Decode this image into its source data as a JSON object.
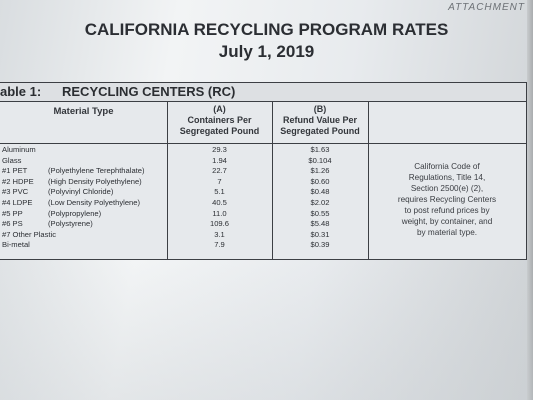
{
  "attachment_label": "ATTACHMENT",
  "title": "CALIFORNIA RECYCLING PROGRAM RATES",
  "date": "July 1, 2019",
  "table": {
    "label": "able 1:",
    "name": "RECYCLING CENTERS (RC)",
    "headers": {
      "material": "Material Type",
      "a_letter": "(A)",
      "a_line1": "Containers Per",
      "a_line2": "Segregated Pound",
      "b_letter": "(B)",
      "b_line1": "Refund Value Per",
      "b_line2": "Segregated Pound"
    },
    "rows": [
      {
        "code": "Aluminum",
        "desc": "",
        "a": "29.3",
        "b": "$1.63"
      },
      {
        "code": "Glass",
        "desc": "",
        "a": "1.94",
        "b": "$0.104"
      },
      {
        "code": "#1 PET",
        "desc": "(Polyethylene Terephthalate)",
        "a": "22.7",
        "b": "$1.26"
      },
      {
        "code": "#2 HDPE",
        "desc": "(High Density Polyethylene)",
        "a": "7",
        "b": "$0.60"
      },
      {
        "code": "#3 PVC",
        "desc": "(Polyvinyl Chloride)",
        "a": "5.1",
        "b": "$0.48"
      },
      {
        "code": "#4 LDPE",
        "desc": "(Low Density Polyethylene)",
        "a": "40.5",
        "b": "$2.02"
      },
      {
        "code": "#5 PP",
        "desc": "(Polypropylene)",
        "a": "11.0",
        "b": "$0.55"
      },
      {
        "code": "#6 PS",
        "desc": "(Polystyrene)",
        "a": "109.6",
        "b": "$5.48"
      },
      {
        "code": "#7 Other Plastic",
        "desc": "",
        "a": "3.1",
        "b": "$0.31"
      },
      {
        "code": "Bi-metal",
        "desc": "",
        "a": "7.9",
        "b": "$0.39"
      }
    ],
    "note_lines": [
      "California Code of",
      "Regulations, Title 14,",
      "Section 2500(e) (2),",
      "requires Recycling Centers",
      "to post refund prices by",
      "weight, by container, and",
      "by material type."
    ]
  }
}
